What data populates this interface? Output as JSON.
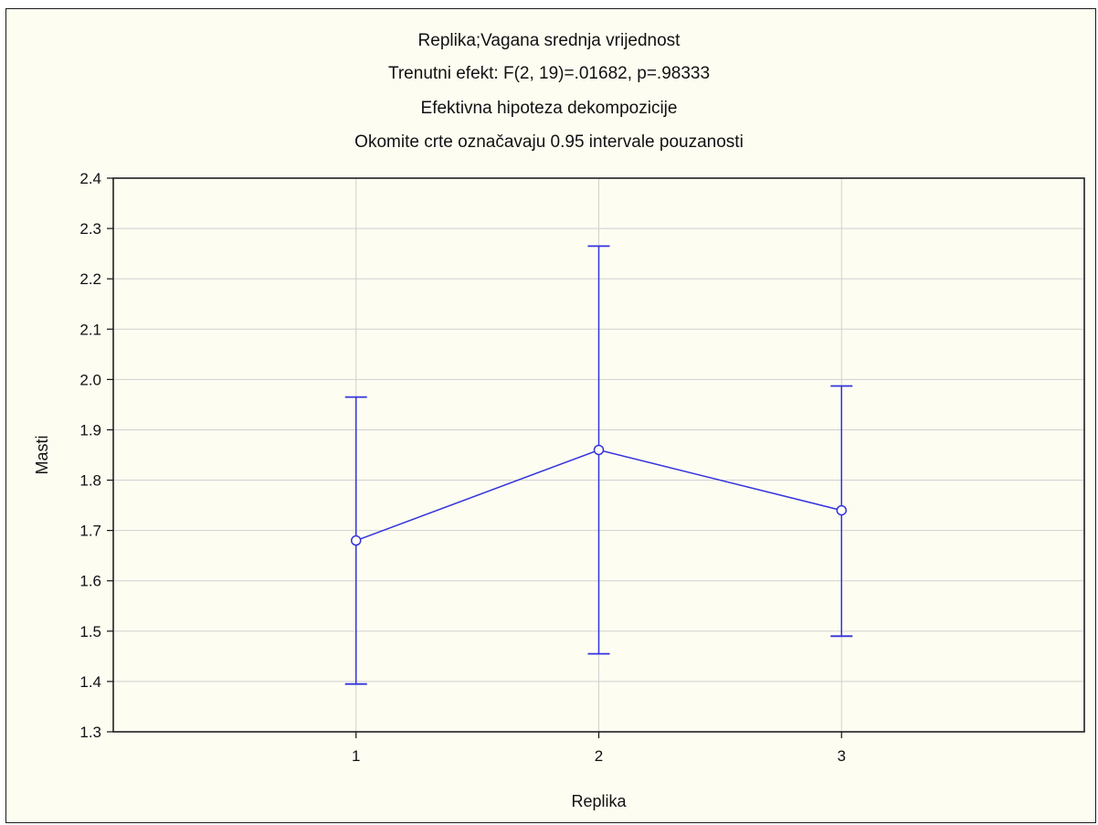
{
  "chart_data": {
    "type": "line",
    "title_lines": [
      "Replika;Vagana srednja vrijednost",
      "Trenutni efekt:  F(2, 19)=.01682,  p=.98333",
      "Efektivna hipoteza dekompozicije",
      "Okomite crte označavaju 0.95 intervale pouzanosti"
    ],
    "xlabel": "Replika",
    "ylabel": "Masti",
    "categories": [
      "1",
      "2",
      "3"
    ],
    "series": [
      {
        "values": [
          1.68,
          1.86,
          1.74
        ],
        "ci_lower": [
          1.395,
          1.455,
          1.49
        ],
        "ci_upper": [
          1.965,
          2.265,
          1.987
        ]
      }
    ],
    "ylim": [
      1.3,
      2.4
    ],
    "yticks": [
      "1.3",
      "1.4",
      "1.5",
      "1.6",
      "1.7",
      "1.8",
      "1.9",
      "2.0",
      "2.1",
      "2.2",
      "2.3",
      "2.4"
    ],
    "grid": true,
    "colors": {
      "series": "#3333dd",
      "grid": "#d0d0d0",
      "background": "#fefdf2"
    }
  }
}
